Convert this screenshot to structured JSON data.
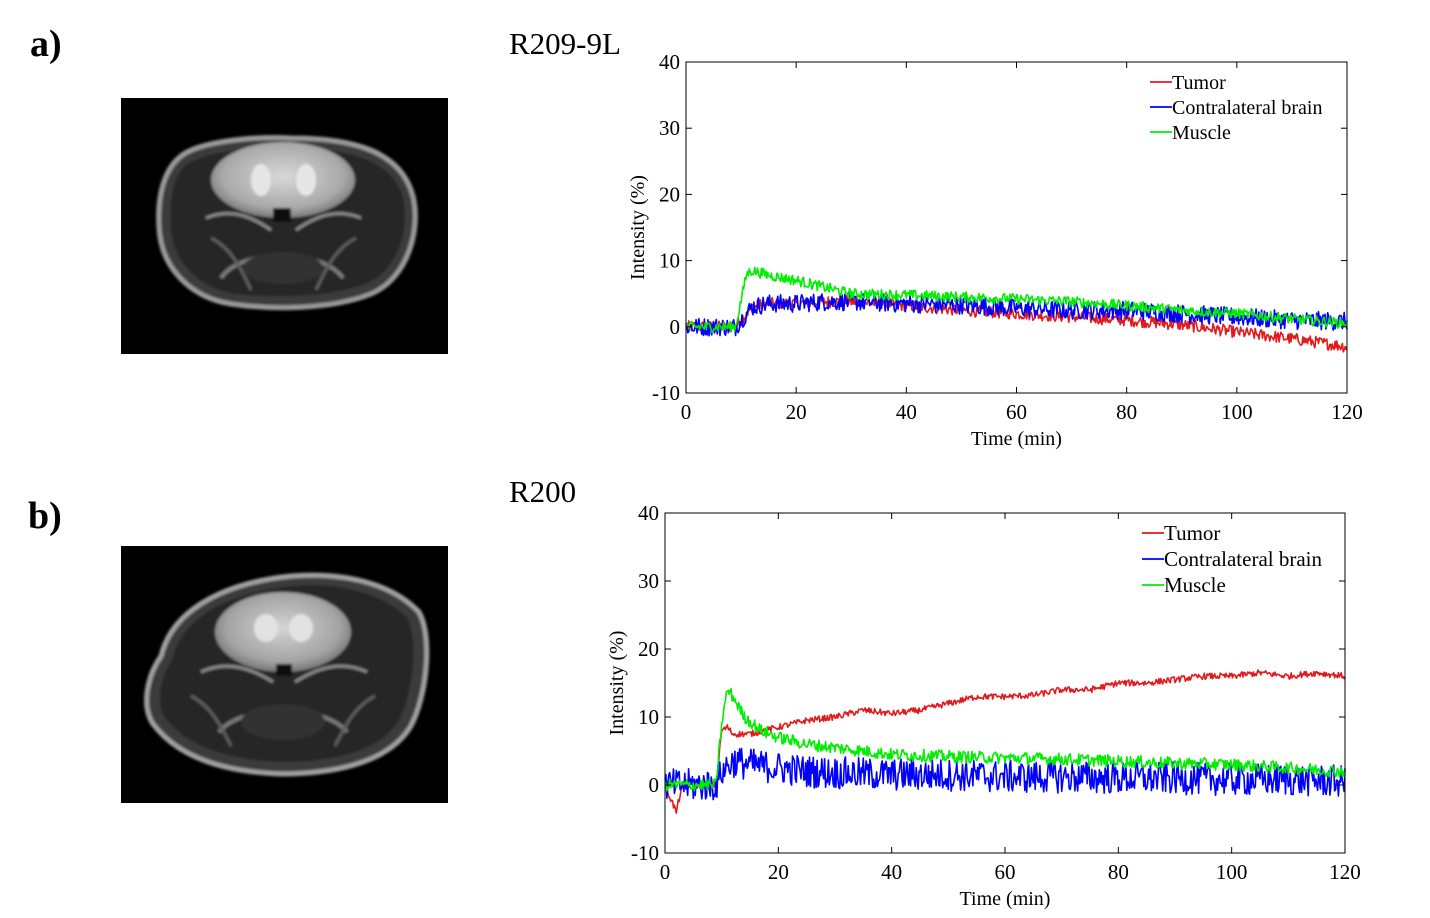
{
  "panels": [
    {
      "label": "a)",
      "name": "R209-9L",
      "image_desc": "mri-axial-slice",
      "chart_data": {
        "type": "line",
        "xlabel": "Time (min)",
        "ylabel": "Intensity (%)",
        "xlim": [
          0,
          120
        ],
        "ylim": [
          -10,
          40
        ],
        "xticks": [
          0,
          20,
          40,
          60,
          80,
          100,
          120
        ],
        "yticks": [
          -10,
          0,
          10,
          20,
          30,
          40
        ],
        "legend_position": "top-right",
        "series": [
          {
            "name": "Tumor",
            "color": "#e31a1c",
            "x": [
              0,
              5,
              9,
              10,
              12,
              15,
              20,
              25,
              30,
              40,
              50,
              60,
              70,
              80,
              90,
              100,
              110,
              120
            ],
            "y": [
              0,
              0,
              0,
              1,
              3,
              3.5,
              3.5,
              3.8,
              3.8,
              3.2,
              2.5,
              2.0,
              1.5,
              1.0,
              0.3,
              -0.8,
              -1.8,
              -3
            ]
          },
          {
            "name": "Contralateral brain",
            "color": "#0000ff",
            "x": [
              0,
              5,
              9,
              10,
              12,
              15,
              20,
              25,
              30,
              40,
              50,
              60,
              70,
              80,
              90,
              100,
              110,
              120
            ],
            "y": [
              0,
              0,
              0,
              1,
              3,
              3.5,
              3.5,
              3.8,
              3.8,
              3.5,
              3.3,
              2.8,
              2.5,
              2.5,
              2.0,
              1.5,
              1.0,
              0.8
            ]
          },
          {
            "name": "Muscle",
            "color": "#00ee00",
            "x": [
              0,
              5,
              9,
              10,
              11,
              12,
              15,
              20,
              25,
              30,
              40,
              50,
              60,
              70,
              80,
              90,
              100,
              110,
              120
            ],
            "y": [
              0,
              0,
              0,
              4,
              8,
              8.5,
              7.8,
              7,
              6,
              5,
              4.8,
              4.5,
              4.2,
              3.8,
              3.2,
              2.5,
              2,
              1.2,
              0.5
            ]
          }
        ]
      }
    },
    {
      "label": "b)",
      "name": "R200",
      "image_desc": "mri-axial-slice",
      "chart_data": {
        "type": "line",
        "xlabel": "Time (min)",
        "ylabel": "Intensity (%)",
        "xlim": [
          0,
          120
        ],
        "ylim": [
          -10,
          40
        ],
        "xticks": [
          0,
          20,
          40,
          60,
          80,
          100,
          120
        ],
        "yticks": [
          -10,
          0,
          10,
          20,
          30,
          40
        ],
        "legend_position": "top-right",
        "series": [
          {
            "name": "Tumor",
            "color": "#e31a1c",
            "x": [
              0,
              2,
              3,
              5,
              9,
              10,
              11,
              12,
              15,
              20,
              25,
              30,
              35,
              40,
              45,
              50,
              55,
              60,
              65,
              70,
              75,
              80,
              85,
              90,
              95,
              100,
              105,
              110,
              115,
              120
            ],
            "y": [
              0,
              -4,
              0,
              0,
              0,
              8,
              8.5,
              7.5,
              7.5,
              8.5,
              9.5,
              10,
              11,
              10.5,
              11,
              12,
              13,
              13,
              13.2,
              14,
              14,
              15,
              15,
              15.5,
              16,
              16,
              16.5,
              16,
              16.5,
              16
            ]
          },
          {
            "name": "Contralateral brain",
            "color": "#0000ff",
            "x": [
              0,
              5,
              9,
              10,
              12,
              15,
              20,
              25,
              30,
              40,
              50,
              60,
              70,
              80,
              90,
              100,
              110,
              120
            ],
            "y": [
              0,
              0,
              0,
              2,
              3.5,
              3,
              2.5,
              2,
              1.8,
              1.5,
              1.5,
              1.2,
              1.2,
              1.0,
              1.0,
              0.8,
              0.8,
              0.5
            ]
          },
          {
            "name": "Muscle",
            "color": "#00ee00",
            "x": [
              0,
              5,
              9,
              10,
              11,
              12,
              14,
              17,
              20,
              25,
              30,
              40,
              50,
              60,
              70,
              80,
              90,
              100,
              110,
              120
            ],
            "y": [
              0,
              0,
              0,
              9,
              14,
              13,
              10,
              8,
              7,
              6,
              5.5,
              4.5,
              4.2,
              4,
              3.8,
              3.5,
              3.2,
              3,
              2.5,
              2
            ]
          }
        ]
      }
    }
  ]
}
